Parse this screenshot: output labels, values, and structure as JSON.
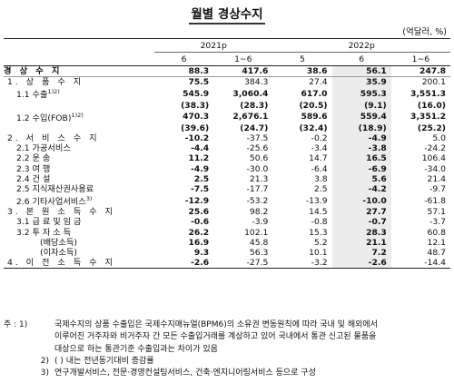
{
  "title": "월별 경상수지",
  "unit": "(억달러, %)",
  "header": {
    "year_2021": "2021p",
    "year_2022": "2022p",
    "periods": [
      "6",
      "1~6",
      "5",
      "6",
      "1~6"
    ]
  },
  "rows": [
    {
      "label": "경 상 수 지",
      "level": 0,
      "kind": "total",
      "values": [
        "88.3",
        "417.6",
        "38.6",
        "56.1",
        "247.8"
      ]
    },
    {
      "label": "1. 상 품 수 지",
      "level": 1,
      "kind": "sec",
      "values": [
        "75.5",
        "384.3",
        "27.4",
        "35.9",
        "200.1"
      ]
    },
    {
      "label": "1.1 수출",
      "sup": "1)2)",
      "level": 2,
      "kind": "bold",
      "values": [
        "545.9",
        "3,060.4",
        "617.0",
        "595.3",
        "3,551.3"
      ]
    },
    {
      "label": "",
      "level": 2,
      "kind": "bold",
      "values": [
        "(38.3)",
        "(28.3)",
        "(20.5)",
        "(9.1)",
        "(16.0)"
      ]
    },
    {
      "label": "1.2 수입(FOB)",
      "sup": "1)2)",
      "level": 2,
      "kind": "bold",
      "values": [
        "470.3",
        "2,676.1",
        "589.6",
        "559.4",
        "3,351.2"
      ]
    },
    {
      "label": "",
      "level": 2,
      "kind": "bold",
      "values": [
        "(39.6)",
        "(24.7)",
        "(32.4)",
        "(18.9)",
        "(25.2)"
      ]
    },
    {
      "label": "2. 서 비 스 수 지",
      "level": 1,
      "kind": "sec",
      "values": [
        "-10.2",
        "-37.5",
        "-0.2",
        "-4.9",
        "5.0"
      ]
    },
    {
      "label": "2.1 가공서비스",
      "level": 2,
      "kind": "norm",
      "values": [
        "-4.4",
        "-25.6",
        "-3.4",
        "-3.8",
        "-24.2"
      ]
    },
    {
      "label": "2.2 운 송",
      "level": 2,
      "kind": "norm",
      "values": [
        "11.2",
        "50.6",
        "14.7",
        "16.5",
        "106.4"
      ]
    },
    {
      "label": "2.3 여 행",
      "level": 2,
      "kind": "norm",
      "values": [
        "-4.9",
        "-30.0",
        "-6.4",
        "-6.9",
        "-34.0"
      ]
    },
    {
      "label": "2.4 건 설",
      "level": 2,
      "kind": "norm",
      "values": [
        "2.5",
        "21.3",
        "3.8",
        "5.6",
        "21.4"
      ]
    },
    {
      "label": "2.5 지식재산권사용료",
      "level": 2,
      "kind": "norm",
      "values": [
        "-7.5",
        "-17.7",
        "2.5",
        "-4.2",
        "-9.7"
      ]
    },
    {
      "label": "2.6 기타사업서비스",
      "sup": "3)",
      "level": 2,
      "kind": "norm",
      "values": [
        "-12.9",
        "-53.2",
        "-13.9",
        "-10.0",
        "-61.8"
      ]
    },
    {
      "label": "3. 본 원 소 득 수 지",
      "level": 1,
      "kind": "sec",
      "values": [
        "25.6",
        "98.2",
        "14.5",
        "27.7",
        "57.1"
      ]
    },
    {
      "label": "3.1 급 료 및 임 금",
      "level": 2,
      "kind": "norm",
      "values": [
        "-0.6",
        "-3.9",
        "-0.8",
        "-0.7",
        "-3.7"
      ]
    },
    {
      "label": "3.2 투 자 소 득",
      "level": 2,
      "kind": "norm",
      "values": [
        "26.2",
        "102.1",
        "15.3",
        "28.3",
        "60.8"
      ]
    },
    {
      "label": "(배당소득)",
      "level": 4,
      "kind": "norm",
      "values": [
        "16.9",
        "45.8",
        "5.2",
        "21.1",
        "12.1"
      ]
    },
    {
      "label": "(이자소득)",
      "level": 4,
      "kind": "norm",
      "values": [
        "9.3",
        "56.3",
        "10.1",
        "7.2",
        "48.7"
      ]
    },
    {
      "label": "4. 이 전 소 득 수 지",
      "level": 1,
      "kind": "last",
      "values": [
        "-2.6",
        "-27.5",
        "-3.2",
        "-2.6",
        "-14.4"
      ]
    }
  ],
  "notes": {
    "tag": "주 : 1)",
    "n1": "국제수지의 상품 수출입은 국제수지매뉴얼(BPM6)의 소유권 변동원칙에 따라 국내 및 해외에서",
    "n1b": "이루어진 거주자와 비거주자 간 모든 수출입거래를 계상하고 있어 국내에서 통관 신고된 물품을",
    "n1c": "대상으로 하는 통관기준 수출입과는 차이가 있음",
    "tag2": "2)",
    "n2": "( ) 내는 전년동기대비 증감률",
    "tag3": "3)",
    "n3": "연구개발서비스, 전문·경영컨설팅서비스, 건축·엔지니어링서비스 등으로 구성"
  },
  "colors": {
    "highlight": "#ececec",
    "rule": "#222222"
  }
}
